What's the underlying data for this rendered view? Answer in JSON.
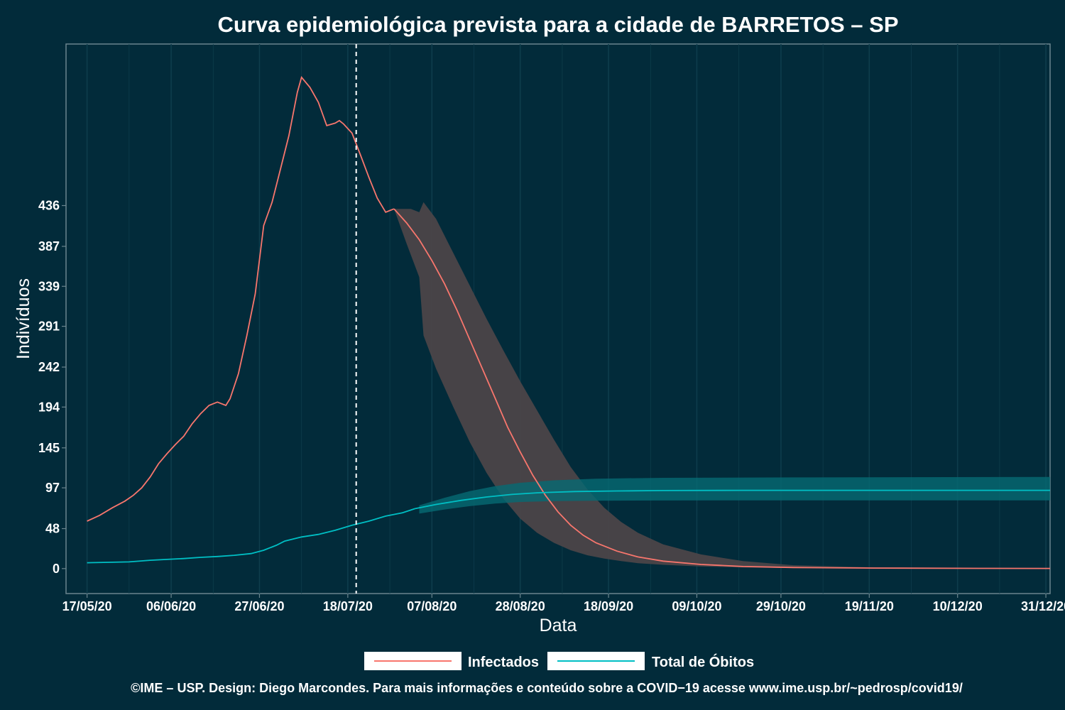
{
  "chart_data": {
    "type": "line",
    "title": "Curva epidemiológica prevista para a cidade de BARRETOS – SP",
    "xlabel": "Data",
    "ylabel": "Indivíduos",
    "x_tick_labels": [
      "17/05/20",
      "06/06/20",
      "27/06/20",
      "18/07/20",
      "07/08/20",
      "28/08/20",
      "18/09/20",
      "09/10/20",
      "29/10/20",
      "19/11/20",
      "10/12/20",
      "31/12/20"
    ],
    "y_tick_labels": [
      "0",
      "48",
      "97",
      "145",
      "194",
      "242",
      "291",
      "339",
      "387",
      "436"
    ],
    "y_ticks": [
      0,
      48,
      97,
      145,
      194,
      242,
      291,
      339,
      387,
      436
    ],
    "xlim": [
      "2020-05-12",
      "2021-01-01"
    ],
    "ylim": [
      -30,
      630
    ],
    "forecast_start": "2020-07-20",
    "grid": "vertical",
    "legend_position": "bottom",
    "colors": {
      "background": "#022b3a",
      "infectados": "#f8766d",
      "obitos": "#00bfc4",
      "band_infectados": "#4b4448",
      "band_obitos": "#066a73",
      "grid": "#0e3d4c"
    },
    "series": [
      {
        "name": "Infectados",
        "observed": [
          [
            "2020-05-17",
            57
          ],
          [
            "2020-05-20",
            64
          ],
          [
            "2020-05-23",
            73
          ],
          [
            "2020-05-26",
            81
          ],
          [
            "2020-05-28",
            88
          ],
          [
            "2020-05-30",
            97
          ],
          [
            "2020-06-01",
            110
          ],
          [
            "2020-06-03",
            126
          ],
          [
            "2020-06-05",
            138
          ],
          [
            "2020-06-07",
            149
          ],
          [
            "2020-06-09",
            159
          ],
          [
            "2020-06-11",
            174
          ],
          [
            "2020-06-13",
            186
          ],
          [
            "2020-06-15",
            196
          ],
          [
            "2020-06-17",
            200
          ],
          [
            "2020-06-19",
            196
          ],
          [
            "2020-06-20",
            204
          ],
          [
            "2020-06-22",
            234
          ],
          [
            "2020-06-24",
            280
          ],
          [
            "2020-06-26",
            330
          ],
          [
            "2020-06-28",
            412
          ],
          [
            "2020-06-30",
            440
          ],
          [
            "2020-07-02",
            480
          ],
          [
            "2020-07-04",
            520
          ],
          [
            "2020-07-06",
            572
          ],
          [
            "2020-07-07",
            590
          ],
          [
            "2020-07-09",
            578
          ],
          [
            "2020-07-11",
            560
          ],
          [
            "2020-07-13",
            532
          ],
          [
            "2020-07-15",
            535
          ],
          [
            "2020-07-16",
            538
          ],
          [
            "2020-07-17",
            534
          ],
          [
            "2020-07-19",
            523
          ],
          [
            "2020-07-21",
            497
          ],
          [
            "2020-07-23",
            470
          ],
          [
            "2020-07-25",
            445
          ],
          [
            "2020-07-27",
            428
          ],
          [
            "2020-07-28",
            430
          ],
          [
            "2020-07-29",
            432
          ]
        ],
        "forecast": [
          [
            "2020-07-29",
            432
          ],
          [
            "2020-08-01",
            415
          ],
          [
            "2020-08-04",
            395
          ],
          [
            "2020-08-07",
            370
          ],
          [
            "2020-08-10",
            342
          ],
          [
            "2020-08-13",
            310
          ],
          [
            "2020-08-16",
            275
          ],
          [
            "2020-08-19",
            240
          ],
          [
            "2020-08-22",
            205
          ],
          [
            "2020-08-25",
            170
          ],
          [
            "2020-08-28",
            140
          ],
          [
            "2020-08-31",
            112
          ],
          [
            "2020-09-03",
            88
          ],
          [
            "2020-09-06",
            68
          ],
          [
            "2020-09-09",
            52
          ],
          [
            "2020-09-12",
            40
          ],
          [
            "2020-09-15",
            31
          ],
          [
            "2020-09-20",
            21
          ],
          [
            "2020-09-25",
            14
          ],
          [
            "2020-10-01",
            9
          ],
          [
            "2020-10-10",
            5
          ],
          [
            "2020-10-20",
            2.5
          ],
          [
            "2020-11-01",
            1.3
          ],
          [
            "2020-11-20",
            0.6
          ],
          [
            "2020-12-15",
            0.3
          ],
          [
            "2021-01-01",
            0.2
          ]
        ],
        "upper": [
          [
            "2020-07-29",
            432
          ],
          [
            "2020-08-02",
            432
          ],
          [
            "2020-08-04",
            428
          ],
          [
            "2020-08-05",
            440
          ],
          [
            "2020-08-08",
            420
          ],
          [
            "2020-08-12",
            380
          ],
          [
            "2020-08-16",
            340
          ],
          [
            "2020-08-20",
            300
          ],
          [
            "2020-08-24",
            262
          ],
          [
            "2020-08-28",
            225
          ],
          [
            "2020-09-01",
            190
          ],
          [
            "2020-09-05",
            155
          ],
          [
            "2020-09-09",
            122
          ],
          [
            "2020-09-13",
            95
          ],
          [
            "2020-09-17",
            73
          ],
          [
            "2020-09-21",
            56
          ],
          [
            "2020-09-25",
            43
          ],
          [
            "2020-10-01",
            29
          ],
          [
            "2020-10-10",
            17
          ],
          [
            "2020-10-20",
            9
          ],
          [
            "2020-11-01",
            4
          ],
          [
            "2020-11-20",
            1.5
          ],
          [
            "2020-12-15",
            0.6
          ],
          [
            "2021-01-01",
            0.4
          ]
        ],
        "lower": [
          [
            "2020-07-29",
            432
          ],
          [
            "2020-08-01",
            390
          ],
          [
            "2020-08-04",
            350
          ],
          [
            "2020-08-05",
            280
          ],
          [
            "2020-08-08",
            240
          ],
          [
            "2020-08-12",
            195
          ],
          [
            "2020-08-16",
            152
          ],
          [
            "2020-08-20",
            115
          ],
          [
            "2020-08-24",
            84
          ],
          [
            "2020-08-28",
            60
          ],
          [
            "2020-09-01",
            43
          ],
          [
            "2020-09-05",
            31
          ],
          [
            "2020-09-09",
            22
          ],
          [
            "2020-09-13",
            16
          ],
          [
            "2020-09-17",
            12
          ],
          [
            "2020-09-21",
            9
          ],
          [
            "2020-09-25",
            6.5
          ],
          [
            "2020-10-01",
            4.5
          ],
          [
            "2020-10-10",
            2.5
          ],
          [
            "2020-10-20",
            1.4
          ],
          [
            "2020-11-01",
            0.7
          ],
          [
            "2020-11-20",
            0.3
          ],
          [
            "2020-12-15",
            0.1
          ],
          [
            "2021-01-01",
            0.05
          ]
        ]
      },
      {
        "name": "Total de Óbitos",
        "observed": [
          [
            "2020-05-17",
            7
          ],
          [
            "2020-05-22",
            7.5
          ],
          [
            "2020-05-27",
            8
          ],
          [
            "2020-06-01",
            10
          ],
          [
            "2020-06-05",
            11
          ],
          [
            "2020-06-09",
            12
          ],
          [
            "2020-06-13",
            13.5
          ],
          [
            "2020-06-17",
            14.5
          ],
          [
            "2020-06-21",
            16
          ],
          [
            "2020-06-25",
            18
          ],
          [
            "2020-06-28",
            22
          ],
          [
            "2020-07-01",
            28
          ],
          [
            "2020-07-03",
            33
          ],
          [
            "2020-07-07",
            38
          ],
          [
            "2020-07-11",
            41
          ],
          [
            "2020-07-15",
            46
          ],
          [
            "2020-07-19",
            52
          ],
          [
            "2020-07-23",
            57
          ],
          [
            "2020-07-27",
            63
          ],
          [
            "2020-07-31",
            67
          ],
          [
            "2020-08-03",
            72
          ]
        ],
        "forecast": [
          [
            "2020-08-03",
            72
          ],
          [
            "2020-08-08",
            77
          ],
          [
            "2020-08-14",
            82
          ],
          [
            "2020-08-20",
            86
          ],
          [
            "2020-08-26",
            89
          ],
          [
            "2020-09-01",
            91
          ],
          [
            "2020-09-10",
            92.5
          ],
          [
            "2020-09-20",
            93.2
          ],
          [
            "2020-10-01",
            93.7
          ],
          [
            "2020-10-20",
            94
          ],
          [
            "2020-11-20",
            94
          ],
          [
            "2021-01-01",
            94
          ]
        ],
        "upper": [
          [
            "2020-08-04",
            76
          ],
          [
            "2020-08-10",
            85
          ],
          [
            "2020-08-16",
            93
          ],
          [
            "2020-08-22",
            99
          ],
          [
            "2020-08-28",
            103
          ],
          [
            "2020-09-05",
            106
          ],
          [
            "2020-09-15",
            108
          ],
          [
            "2020-10-01",
            109
          ],
          [
            "2020-11-01",
            109.5
          ],
          [
            "2021-01-01",
            110
          ]
        ],
        "lower": [
          [
            "2020-08-04",
            66
          ],
          [
            "2020-08-10",
            71
          ],
          [
            "2020-08-16",
            75
          ],
          [
            "2020-08-22",
            78
          ],
          [
            "2020-08-28",
            80
          ],
          [
            "2020-09-05",
            81
          ],
          [
            "2020-09-15",
            81.5
          ],
          [
            "2020-10-01",
            81.8
          ],
          [
            "2020-11-01",
            82
          ],
          [
            "2021-01-01",
            82
          ]
        ]
      }
    ]
  },
  "caption": "©IME – USP. Design: Diego Marcondes. Para mais informações e conteúdo sobre a COVID−19 acesse www.ime.usp.br/~pedrosp/covid19/"
}
